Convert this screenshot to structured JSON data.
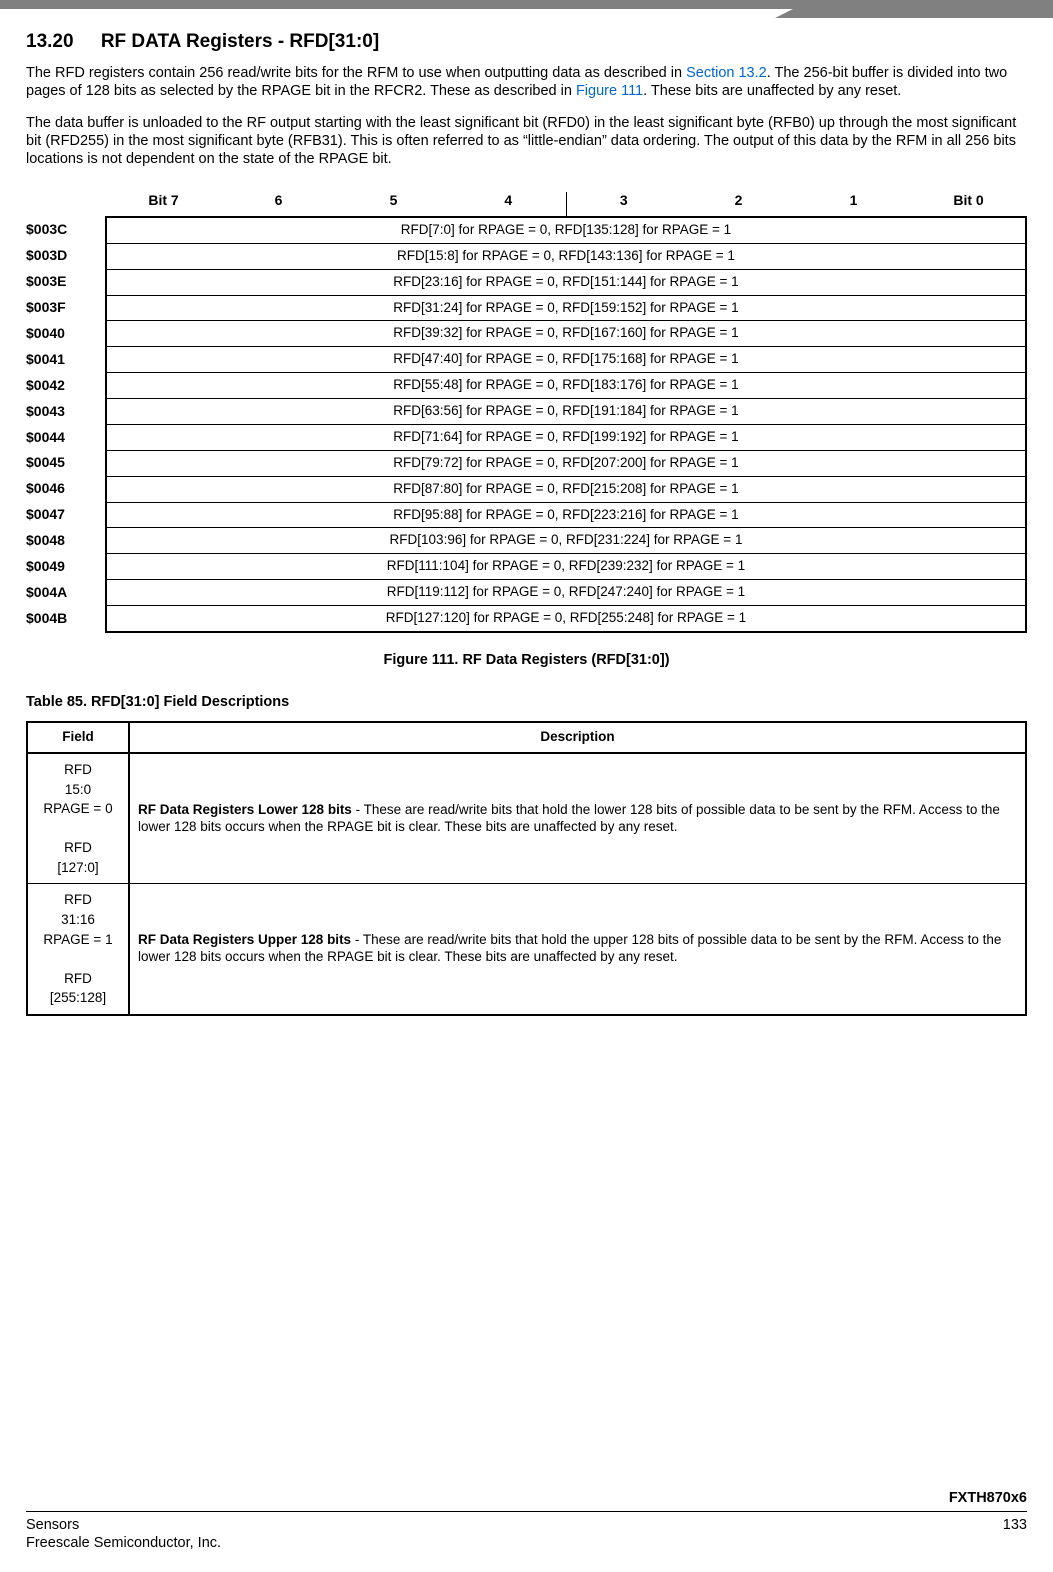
{
  "colors": {
    "text": "#000000",
    "link": "#0066cc",
    "bar": "#808080",
    "background": "#ffffff",
    "border": "#000000"
  },
  "fonts": {
    "family": "Arial, Helvetica, sans-serif",
    "body_size_pt": 11,
    "heading_size_pt": 14,
    "table_size_pt": 10
  },
  "section": {
    "number": "13.20",
    "title": "RF DATA Registers - RFD[31:0]"
  },
  "paragraphs": {
    "p1a": "The RFD registers contain 256 read/write bits for the RFM to use when outputting data as described in ",
    "p1_link1": "Section 13.2",
    "p1b": ". The 256-bit buffer is divided into two pages of 128 bits as selected by the RPAGE bit in the RFCR2. These as described in ",
    "p1_link2": "Figure 111",
    "p1c": ". These bits are unaffected by any reset.",
    "p2": "The data buffer is unloaded to the RF output starting with the least significant bit (RFD0) in the least significant byte (RFB0) up through the most significant bit (RFD255) in the most significant byte (RFB31). This is often referred to as “little-endian” data ordering. The output of this data by the RFM in all 256 bits locations is not dependent on the state of the RPAGE bit."
  },
  "regmap": {
    "columns": [
      "Bit 7",
      "6",
      "5",
      "4",
      "3",
      "2",
      "1",
      "Bit 0"
    ],
    "rows": [
      {
        "addr": "$003C",
        "desc": "RFD[7:0] for RPAGE = 0, RFD[135:128] for RPAGE = 1"
      },
      {
        "addr": "$003D",
        "desc": "RFD[15:8] for RPAGE = 0, RFD[143:136] for RPAGE = 1"
      },
      {
        "addr": "$003E",
        "desc": "RFD[23:16] for RPAGE = 0, RFD[151:144] for RPAGE = 1"
      },
      {
        "addr": "$003F",
        "desc": "RFD[31:24] for RPAGE = 0, RFD[159:152] for RPAGE = 1"
      },
      {
        "addr": "$0040",
        "desc": "RFD[39:32] for RPAGE = 0, RFD[167:160] for RPAGE = 1"
      },
      {
        "addr": "$0041",
        "desc": "RFD[47:40] for RPAGE = 0, RFD[175:168] for RPAGE = 1"
      },
      {
        "addr": "$0042",
        "desc": "RFD[55:48] for RPAGE = 0, RFD[183:176] for RPAGE = 1"
      },
      {
        "addr": "$0043",
        "desc": "RFD[63:56] for RPAGE = 0, RFD[191:184] for RPAGE = 1"
      },
      {
        "addr": "$0044",
        "desc": "RFD[71:64] for RPAGE = 0, RFD[199:192] for RPAGE = 1"
      },
      {
        "addr": "$0045",
        "desc": "RFD[79:72] for RPAGE = 0, RFD[207:200] for RPAGE = 1"
      },
      {
        "addr": "$0046",
        "desc": "RFD[87:80] for RPAGE = 0, RFD[215:208] for RPAGE = 1"
      },
      {
        "addr": "$0047",
        "desc": "RFD[95:88] for RPAGE = 0, RFD[223:216] for RPAGE = 1"
      },
      {
        "addr": "$0048",
        "desc": "RFD[103:96] for RPAGE = 0, RFD[231:224] for RPAGE = 1"
      },
      {
        "addr": "$0049",
        "desc": "RFD[111:104] for RPAGE = 0, RFD[239:232] for RPAGE = 1"
      },
      {
        "addr": "$004A",
        "desc": "RFD[119:112] for RPAGE = 0, RFD[247:240] for RPAGE = 1"
      },
      {
        "addr": "$004B",
        "desc": "RFD[127:120] for RPAGE = 0, RFD[255:248] for RPAGE = 1"
      }
    ],
    "caption": "Figure 111. RF Data Registers (RFD[31:0])"
  },
  "fieldTable": {
    "title": "Table 85. RFD[31:0] Field Descriptions",
    "headers": {
      "field": "Field",
      "desc": "Description"
    },
    "rows": [
      {
        "field_l1": "RFD",
        "field_l2": "15:0",
        "field_l3": "RPAGE = 0",
        "field_l4": "",
        "field_l5": "RFD",
        "field_l6": "[127:0]",
        "desc_b": "RF Data Registers Lower 128 bits",
        "desc_r": " - These are read/write bits that hold the lower 128 bits of possible data to be sent by the RFM. Access to the lower 128 bits occurs when the RPAGE bit is clear. These bits are unaffected by any reset."
      },
      {
        "field_l1": "RFD",
        "field_l2": "31:16",
        "field_l3": "RPAGE = 1",
        "field_l4": "",
        "field_l5": "RFD",
        "field_l6": "[255:128]",
        "desc_b": "RF Data Registers Upper 128 bits",
        "desc_r": " - These are read/write bits that hold the upper 128 bits of possible data to be sent by the RFM. Access to the lower 128 bits occurs when the RPAGE bit is clear. These bits are unaffected by any reset."
      }
    ]
  },
  "footer": {
    "product": "FXTH870x6",
    "left1": "Sensors",
    "left2": "Freescale Semiconductor, Inc.",
    "page": "133"
  }
}
